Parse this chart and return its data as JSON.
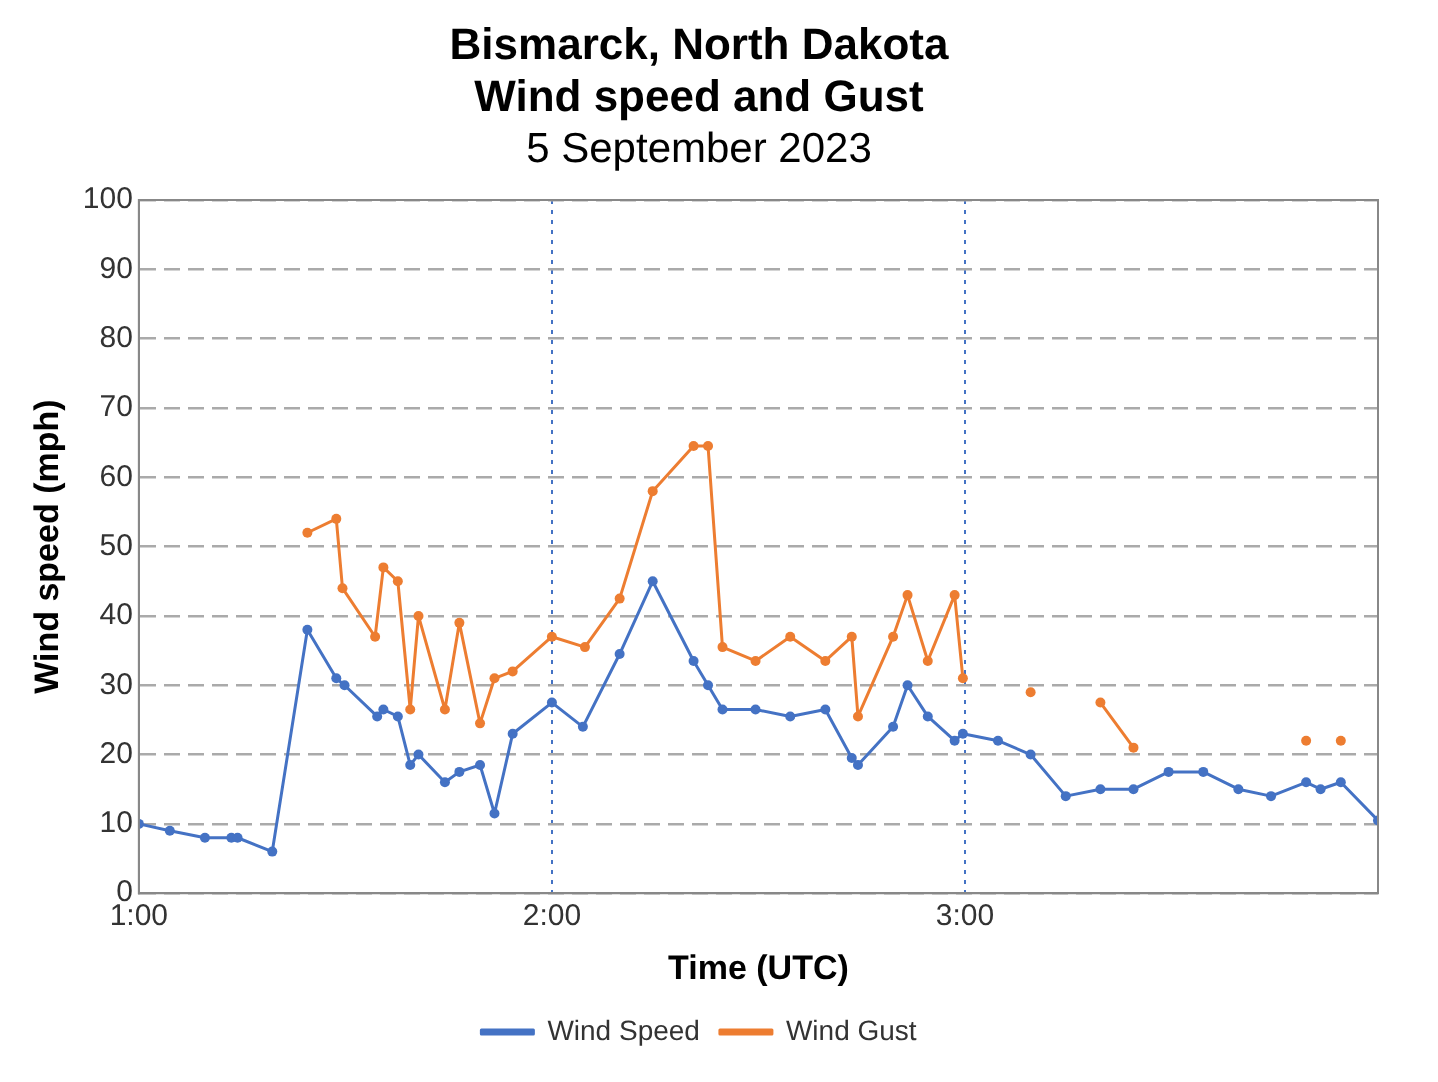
{
  "chart_data": {
    "type": "line",
    "title": "Bismarck, North Dakota\nWind speed and Gust",
    "subtitle": "5 September 2023",
    "xlabel": "Time (UTC)",
    "ylabel": "Wind speed (mph)",
    "xlim": [
      1,
      4
    ],
    "xticks": [
      {
        "value": 1,
        "label": "1:00"
      },
      {
        "value": 2,
        "label": "2:00"
      },
      {
        "value": 3,
        "label": "3:00"
      }
    ],
    "ylim": [
      0,
      100
    ],
    "yticks": [
      0,
      10,
      20,
      30,
      40,
      50,
      60,
      70,
      80,
      90,
      100
    ],
    "grid": true,
    "legend": "bottom",
    "marker": "circle",
    "line_style": "solid",
    "series": [
      {
        "name": "Wind Speed",
        "color": "#4472c4",
        "x": [
          1.0,
          1.075,
          1.16,
          1.224,
          1.239,
          1.323,
          1.408,
          1.478,
          1.498,
          1.577,
          1.592,
          1.627,
          1.657,
          1.677,
          1.741,
          1.776,
          1.826,
          1.861,
          1.905,
          2.0,
          2.075,
          2.164,
          2.244,
          2.343,
          2.378,
          2.413,
          2.493,
          2.577,
          2.662,
          2.726,
          2.741,
          2.826,
          2.861,
          2.91,
          2.975,
          2.995,
          3.08,
          3.159,
          3.244,
          3.328,
          3.408,
          3.493,
          3.577,
          3.662,
          3.741,
          3.826,
          3.861,
          3.91,
          4.0
        ],
        "values": [
          10,
          9,
          8,
          8,
          8,
          6,
          38,
          31,
          30,
          25.5,
          26.5,
          25.5,
          18.5,
          20,
          16,
          17.5,
          18.5,
          11.5,
          23,
          27.5,
          24,
          34.5,
          45,
          33.5,
          30,
          26.5,
          26.5,
          25.5,
          26.5,
          19.5,
          18.5,
          24,
          30,
          25.5,
          22,
          23,
          22,
          20,
          14,
          15,
          15,
          17.5,
          17.5,
          15,
          14,
          16,
          15,
          16,
          10.5
        ]
      },
      {
        "name": "Wind Gust",
        "color": "#ed7d31",
        "x": [
          1.408,
          1.478,
          1.493,
          1.572,
          1.592,
          1.627,
          1.657,
          1.677,
          1.741,
          1.776,
          1.826,
          1.861,
          1.905,
          2.0,
          2.08,
          2.164,
          2.244,
          2.343,
          2.378,
          2.413,
          2.493,
          2.577,
          2.662,
          2.726,
          2.741,
          2.826,
          2.861,
          2.91,
          2.975,
          2.995,
          3.08,
          3.159,
          3.244,
          3.328,
          3.408,
          3.6,
          3.826,
          3.87,
          3.91
        ],
        "values": [
          52,
          54,
          44,
          37,
          47,
          45,
          26.5,
          40,
          26.5,
          39,
          24.5,
          31,
          32,
          37,
          35.5,
          42.5,
          58,
          64.5,
          64.5,
          35.5,
          33.5,
          37,
          33.5,
          37,
          25.5,
          37,
          43,
          33.5,
          43,
          31,
          null,
          29,
          null,
          27.5,
          21,
          null,
          22,
          null,
          22
        ]
      }
    ]
  }
}
